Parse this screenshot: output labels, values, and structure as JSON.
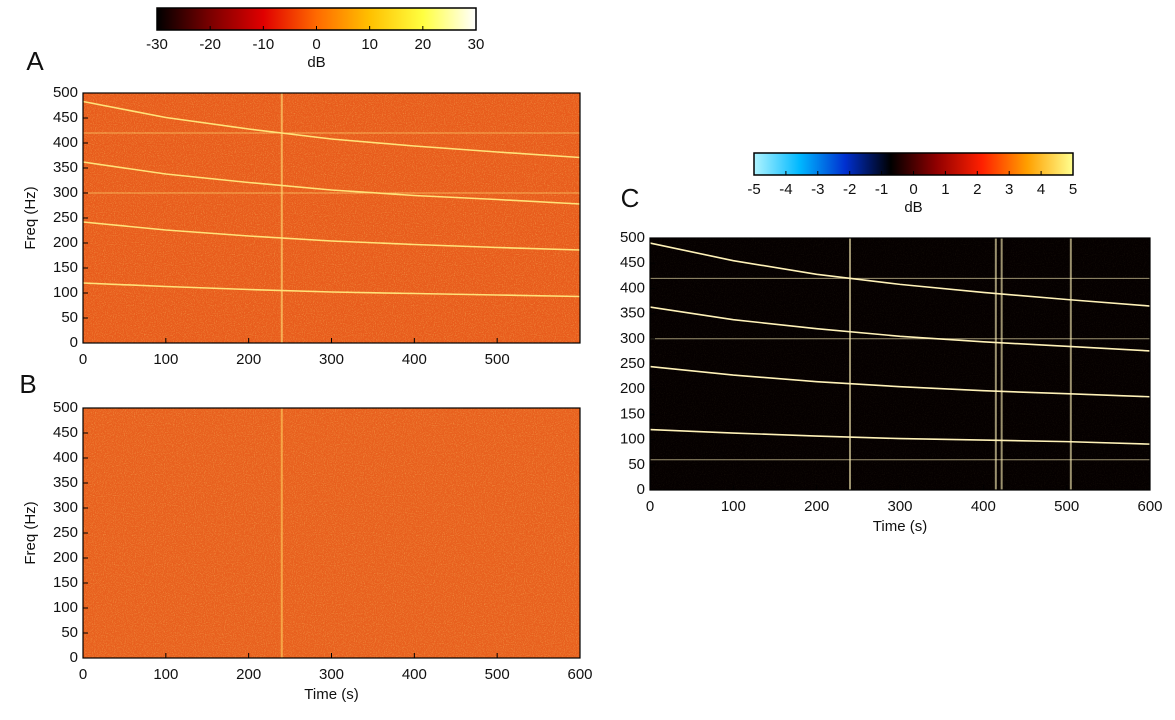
{
  "chart_data": [
    {
      "type": "colorbar",
      "label": "dB",
      "xlim": [
        -30,
        30
      ],
      "xticks": [
        -30,
        -20,
        -10,
        0,
        10,
        20,
        30
      ],
      "colors": [
        "#000000",
        "#7a0000",
        "#e00000",
        "#ff6a00",
        "#ffc000",
        "#ffff40",
        "#ffffff"
      ]
    },
    {
      "type": "spectrogram",
      "panel": "A",
      "ylabel": "Freq (Hz)",
      "background": "#e85c1c",
      "line_color": "#ffe27a",
      "xlim": [
        0,
        600
      ],
      "xticks": [
        0,
        100,
        200,
        300,
        400,
        500
      ],
      "ylim": [
        0,
        500
      ],
      "yticks": [
        0,
        50,
        100,
        150,
        200,
        250,
        300,
        350,
        400,
        450,
        500
      ],
      "x": [
        0,
        100,
        200,
        300,
        400,
        500,
        600
      ],
      "series": [
        {
          "values": [
            120,
            113,
            107,
            102,
            99,
            96,
            93
          ]
        },
        {
          "values": [
            242,
            226,
            214,
            204,
            197,
            191,
            186
          ]
        },
        {
          "values": [
            362,
            338,
            321,
            306,
            295,
            287,
            278
          ]
        },
        {
          "values": [
            483,
            451,
            428,
            408,
            394,
            382,
            371
          ]
        }
      ],
      "hlines": [
        420,
        300
      ],
      "vlines": [
        240
      ]
    },
    {
      "type": "spectrogram",
      "panel": "B",
      "ylabel": "Freq (Hz)",
      "xlabel": "Time (s)",
      "background": "#e8601e",
      "line_color": "#ffd060",
      "xlim": [
        0,
        600
      ],
      "xticks": [
        0,
        100,
        200,
        300,
        400,
        500,
        600
      ],
      "ylim": [
        0,
        500
      ],
      "yticks": [
        0,
        50,
        100,
        150,
        200,
        250,
        300,
        350,
        400,
        450,
        500
      ],
      "vlines": [
        240
      ]
    },
    {
      "type": "colorbar",
      "label": "dB",
      "xlim": [
        -5,
        5
      ],
      "xticks": [
        -5,
        -4,
        -3,
        -2,
        -1,
        0,
        1,
        2,
        3,
        4,
        5
      ],
      "colors": [
        "#b0f4ff",
        "#00b8ff",
        "#0030d0",
        "#000000",
        "#900000",
        "#ff2000",
        "#ffa000",
        "#ffff90"
      ]
    },
    {
      "type": "spectrogram",
      "panel": "C",
      "xlabel": "Time (s)",
      "background": "#050000",
      "line_color": "#fff2b8",
      "xlim": [
        0,
        600
      ],
      "xticks": [
        0,
        100,
        200,
        300,
        400,
        500,
        600
      ],
      "ylim": [
        0,
        500
      ],
      "yticks": [
        0,
        50,
        100,
        150,
        200,
        250,
        300,
        350,
        400,
        450,
        500
      ],
      "x": [
        0,
        100,
        200,
        300,
        400,
        500,
        600
      ],
      "series": [
        {
          "values": [
            120,
            113,
            107,
            102,
            99,
            96,
            91
          ]
        },
        {
          "values": [
            245,
            228,
            215,
            205,
            197,
            191,
            185
          ]
        },
        {
          "values": [
            363,
            338,
            320,
            305,
            294,
            285,
            276
          ]
        },
        {
          "values": [
            490,
            455,
            428,
            408,
            392,
            378,
            365
          ]
        }
      ],
      "hlines": [
        60,
        300,
        420
      ],
      "vlines": [
        240,
        415,
        422,
        505
      ]
    }
  ]
}
